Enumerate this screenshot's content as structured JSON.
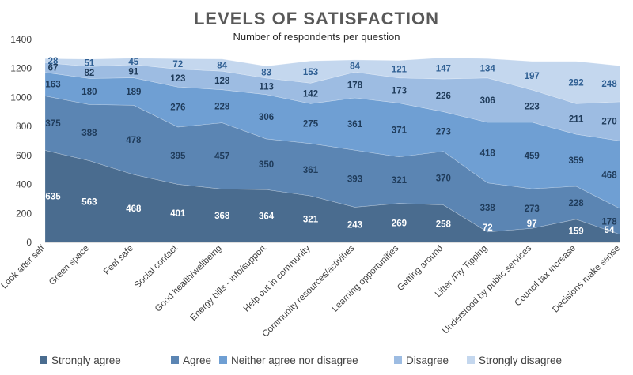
{
  "chart_data": {
    "type": "area",
    "stacked": true,
    "title": "LEVELS OF SATISFACTION",
    "subtitle": "Number of respondents per question",
    "xlabel": "",
    "ylabel": "",
    "ylim": [
      0,
      1400
    ],
    "yticks": [
      0,
      200,
      400,
      600,
      800,
      1000,
      1200,
      1400
    ],
    "legend_position": "bottom",
    "categories": [
      "Look after self",
      "Green space",
      "Feel safe",
      "Social contact",
      "Good health/wellbeing",
      "Energy bills - info/support",
      "Help out in community",
      "Community resources/activities",
      "Learning opportunities",
      "Getting around",
      "Litter /Fly Tipping",
      "Understood by public services",
      "Council tax increase",
      "Decisions make sense"
    ],
    "series": [
      {
        "name": "Strongly agree",
        "color": "#4a6c8f",
        "label_color": "#ffffff",
        "values": [
          635,
          563,
          468,
          401,
          368,
          364,
          321,
          243,
          269,
          258,
          72,
          97,
          159,
          54
        ]
      },
      {
        "name": "Agree",
        "color": "#5b85b3",
        "label_color": "#1f3b5a",
        "values": [
          375,
          388,
          478,
          395,
          457,
          350,
          361,
          393,
          321,
          370,
          338,
          273,
          228,
          178
        ]
      },
      {
        "name": "Neither agree nor disagree",
        "color": "#6f9fd3",
        "label_color": "#1f3b5a",
        "values": [
          163,
          180,
          189,
          276,
          228,
          306,
          275,
          361,
          371,
          273,
          418,
          459,
          359,
          468
        ]
      },
      {
        "name": "Disagree",
        "color": "#9dbce2",
        "label_color": "#1f3b5a",
        "values": [
          67,
          82,
          91,
          123,
          128,
          113,
          142,
          178,
          173,
          226,
          306,
          223,
          211,
          270
        ]
      },
      {
        "name": "Strongly disagree",
        "color": "#c4d7ee",
        "label_color": "#2f5f93",
        "values": [
          28,
          51,
          45,
          72,
          84,
          83,
          153,
          84,
          121,
          147,
          134,
          197,
          292,
          248
        ]
      }
    ]
  }
}
